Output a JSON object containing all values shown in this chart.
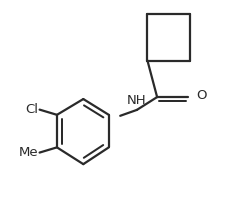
{
  "background": "#ffffff",
  "line_color": "#2a2a2a",
  "line_width": 1.6,
  "fig_width": 2.29,
  "fig_height": 2.04,
  "dpi": 100,
  "label_Cl": "Cl",
  "label_O": "O",
  "label_NH": "NH",
  "label_Me": "Me",
  "font_size": 9.5
}
